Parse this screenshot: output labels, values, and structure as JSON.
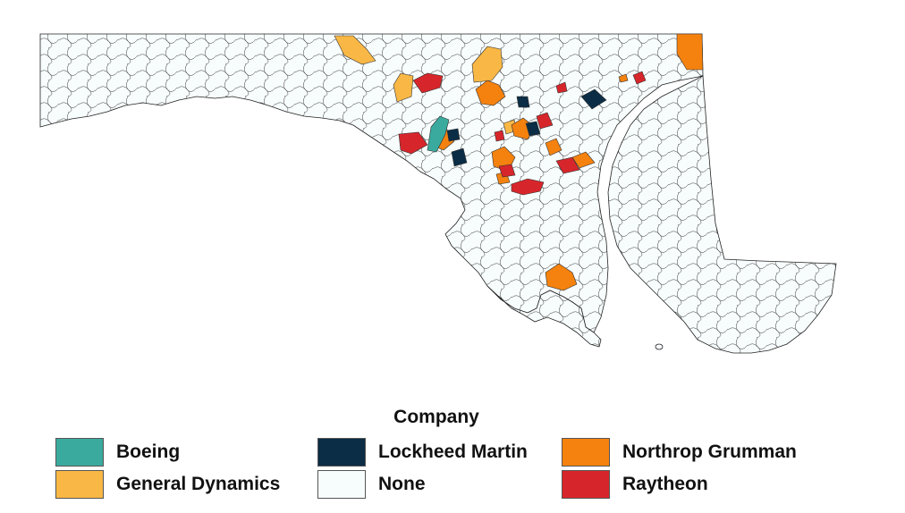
{
  "legend": {
    "title": "Company",
    "items": [
      {
        "label": "Boeing",
        "color": "#3aaa9e"
      },
      {
        "label": "General Dynamics",
        "color": "#f9b845"
      },
      {
        "label": "Lockheed Martin",
        "color": "#0b2d45"
      },
      {
        "label": "None",
        "color": "#f7fcfd"
      },
      {
        "label": "Northrop Grumman",
        "color": "#f5820e"
      },
      {
        "label": "Raytheon",
        "color": "#d7262b"
      }
    ]
  }
}
